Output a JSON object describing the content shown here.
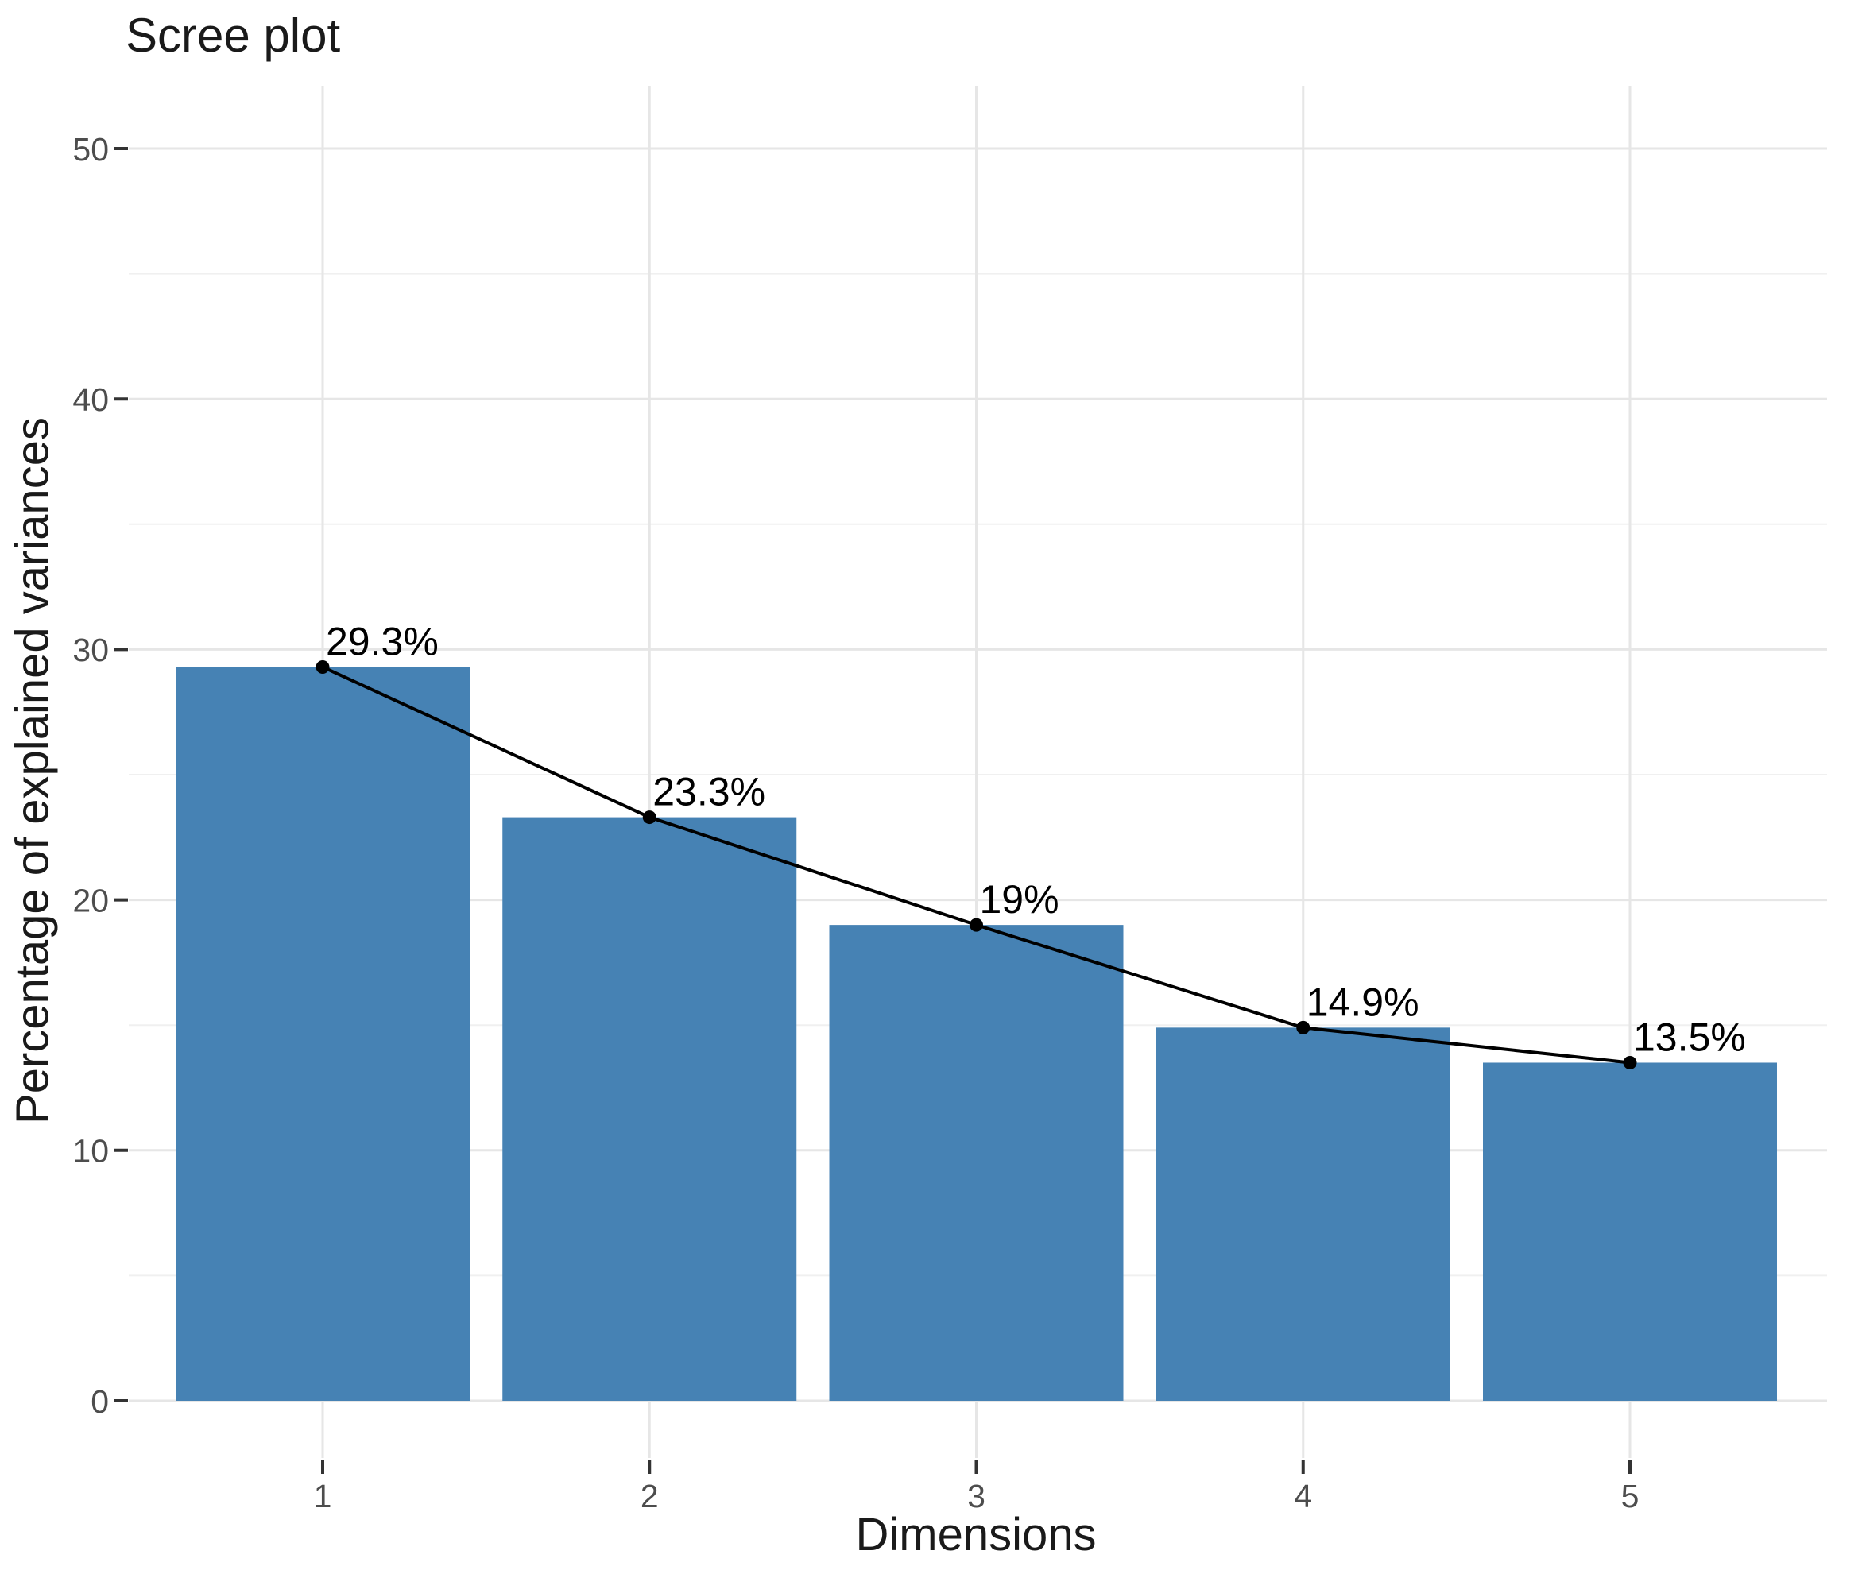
{
  "chart_data": {
    "type": "bar",
    "subtype": "bar-with-line-overlay",
    "title": "Scree plot",
    "xlabel": "Dimensions",
    "ylabel": "Percentage of explained variances",
    "categories": [
      "1",
      "2",
      "3",
      "4",
      "5"
    ],
    "values": [
      29.3,
      23.3,
      19,
      14.9,
      13.5
    ],
    "point_labels": [
      "29.3%",
      "23.3%",
      "19%",
      "14.9%",
      "13.5%"
    ],
    "series": [
      {
        "name": "explained-variance-bars",
        "type": "bar",
        "values": [
          29.3,
          23.3,
          19,
          14.9,
          13.5
        ]
      },
      {
        "name": "explained-variance-line",
        "type": "line",
        "values": [
          29.3,
          23.3,
          19,
          14.9,
          13.5
        ]
      }
    ],
    "ylim": [
      0,
      50
    ],
    "y_major_ticks": [
      0,
      10,
      20,
      30,
      40,
      50
    ],
    "y_minor_ticks": [
      5,
      15,
      25,
      35,
      45
    ],
    "y_tick_labels": [
      "0",
      "10",
      "20",
      "30",
      "40",
      "50"
    ],
    "grid": "major and minor horizontal, major vertical, light gray on white",
    "legend_position": "none",
    "colors": {
      "bar_fill": "#4682B4",
      "line": "#000000",
      "point": "#000000",
      "grid_major": "#E6E6E6",
      "grid_minor": "#F0F0F0",
      "tick_mark": "#333333",
      "tick_label": "#4D4D4D",
      "title_text": "#1A1A1A",
      "value_label_text": "#000000",
      "background": "#FFFFFF"
    }
  }
}
